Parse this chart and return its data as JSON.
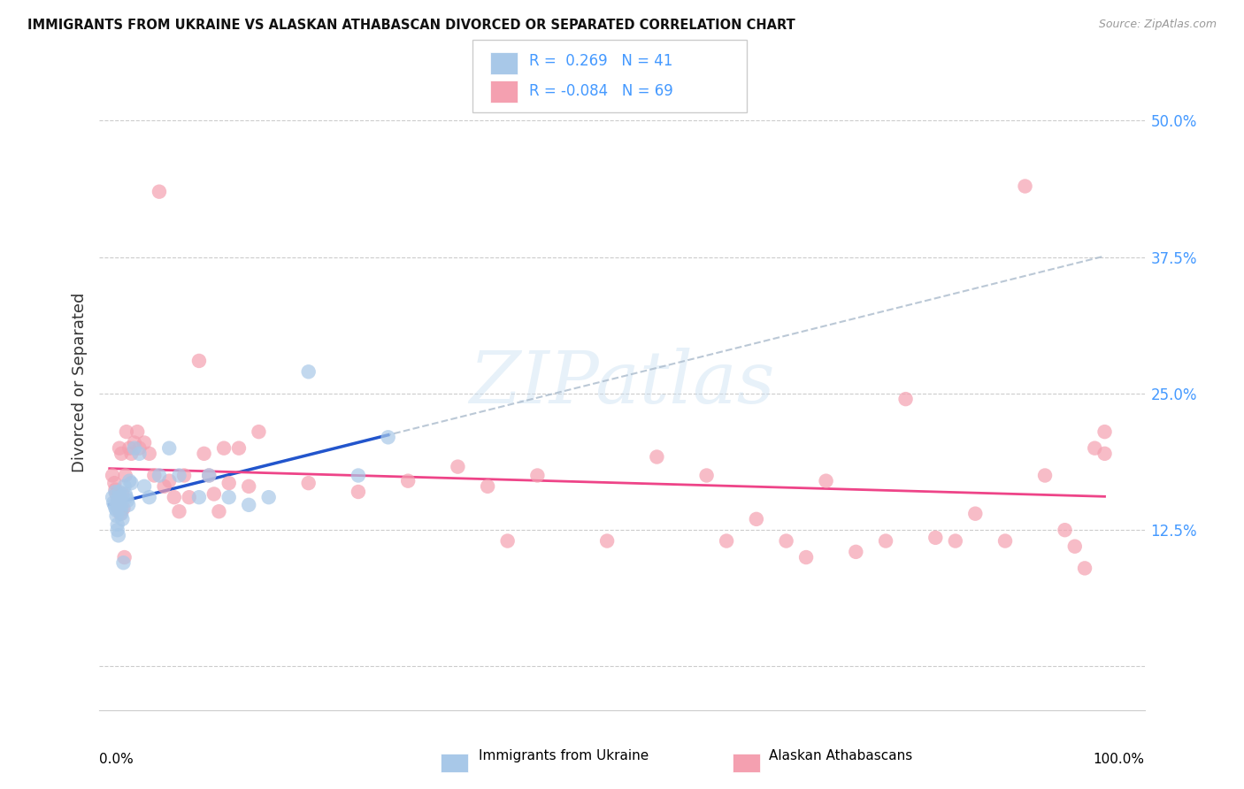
{
  "title": "IMMIGRANTS FROM UKRAINE VS ALASKAN ATHABASCAN DIVORCED OR SEPARATED CORRELATION CHART",
  "source": "Source: ZipAtlas.com",
  "ylabel": "Divorced or Separated",
  "blue_color": "#a8c8e8",
  "pink_color": "#f4a0b0",
  "trend_blue_solid_color": "#2255cc",
  "trend_blue_dash_color": "#aabbdd",
  "trend_pink_color": "#ee4488",
  "r_blue": 0.269,
  "n_blue": 41,
  "r_pink": -0.084,
  "n_pink": 69,
  "legend_color": "#4499ff",
  "watermark_text": "ZIPatlas",
  "ytick_vals": [
    0.0,
    0.125,
    0.25,
    0.375,
    0.5
  ],
  "ytick_labels": [
    "",
    "12.5%",
    "25.0%",
    "37.5%",
    "50.0%"
  ],
  "blue_points_x": [
    0.003,
    0.004,
    0.005,
    0.006,
    0.006,
    0.007,
    0.007,
    0.008,
    0.008,
    0.009,
    0.009,
    0.01,
    0.01,
    0.011,
    0.011,
    0.012,
    0.012,
    0.013,
    0.014,
    0.015,
    0.016,
    0.017,
    0.018,
    0.019,
    0.02,
    0.022,
    0.025,
    0.03,
    0.035,
    0.04,
    0.05,
    0.06,
    0.07,
    0.09,
    0.1,
    0.12,
    0.14,
    0.16,
    0.2,
    0.25,
    0.28
  ],
  "blue_points_y": [
    0.155,
    0.15,
    0.148,
    0.145,
    0.16,
    0.143,
    0.138,
    0.13,
    0.125,
    0.12,
    0.155,
    0.16,
    0.155,
    0.152,
    0.148,
    0.145,
    0.14,
    0.135,
    0.095,
    0.165,
    0.158,
    0.155,
    0.152,
    0.148,
    0.17,
    0.168,
    0.2,
    0.195,
    0.165,
    0.155,
    0.175,
    0.2,
    0.175,
    0.155,
    0.175,
    0.155,
    0.148,
    0.155,
    0.27,
    0.175,
    0.21
  ],
  "pink_points_x": [
    0.003,
    0.005,
    0.006,
    0.007,
    0.008,
    0.009,
    0.01,
    0.011,
    0.012,
    0.013,
    0.014,
    0.015,
    0.016,
    0.017,
    0.02,
    0.022,
    0.025,
    0.028,
    0.03,
    0.035,
    0.04,
    0.045,
    0.05,
    0.055,
    0.06,
    0.065,
    0.07,
    0.075,
    0.08,
    0.09,
    0.095,
    0.1,
    0.105,
    0.11,
    0.115,
    0.12,
    0.13,
    0.14,
    0.15,
    0.2,
    0.25,
    0.3,
    0.35,
    0.38,
    0.4,
    0.43,
    0.5,
    0.55,
    0.6,
    0.62,
    0.65,
    0.68,
    0.7,
    0.72,
    0.75,
    0.78,
    0.8,
    0.83,
    0.85,
    0.87,
    0.9,
    0.92,
    0.94,
    0.96,
    0.97,
    0.98,
    0.99,
    1.0,
    1.0
  ],
  "pink_points_y": [
    0.175,
    0.168,
    0.162,
    0.158,
    0.15,
    0.145,
    0.2,
    0.14,
    0.195,
    0.158,
    0.145,
    0.1,
    0.175,
    0.215,
    0.2,
    0.195,
    0.205,
    0.215,
    0.2,
    0.205,
    0.195,
    0.175,
    0.435,
    0.165,
    0.17,
    0.155,
    0.142,
    0.175,
    0.155,
    0.28,
    0.195,
    0.175,
    0.158,
    0.142,
    0.2,
    0.168,
    0.2,
    0.165,
    0.215,
    0.168,
    0.16,
    0.17,
    0.183,
    0.165,
    0.115,
    0.175,
    0.115,
    0.192,
    0.175,
    0.115,
    0.135,
    0.115,
    0.1,
    0.17,
    0.105,
    0.115,
    0.245,
    0.118,
    0.115,
    0.14,
    0.115,
    0.44,
    0.175,
    0.125,
    0.11,
    0.09,
    0.2,
    0.195,
    0.215
  ]
}
